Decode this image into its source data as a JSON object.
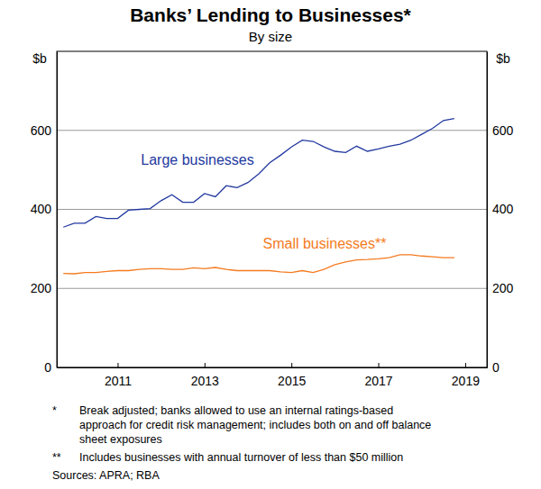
{
  "chart_data": {
    "type": "line",
    "title": "Banks’ Lending to Businesses*",
    "subtitle": "By size",
    "ylabel": "$b",
    "x": [
      2009.75,
      2010.0,
      2010.25,
      2010.5,
      2010.75,
      2011.0,
      2011.25,
      2011.5,
      2011.75,
      2012.0,
      2012.25,
      2012.5,
      2012.75,
      2013.0,
      2013.25,
      2013.5,
      2013.75,
      2014.0,
      2014.25,
      2014.5,
      2014.75,
      2015.0,
      2015.25,
      2015.5,
      2015.75,
      2016.0,
      2016.25,
      2016.5,
      2016.75,
      2017.0,
      2017.25,
      2017.5,
      2017.75,
      2018.0,
      2018.25,
      2018.5,
      2018.75
    ],
    "series": [
      {
        "name": "Large businesses",
        "color": "#2339a0",
        "values": [
          355,
          365,
          365,
          382,
          377,
          377,
          398,
          400,
          402,
          422,
          437,
          418,
          418,
          440,
          432,
          460,
          455,
          468,
          490,
          518,
          537,
          558,
          575,
          572,
          558,
          547,
          544,
          560,
          547,
          553,
          560,
          565,
          575,
          590,
          605,
          625,
          630
        ]
      },
      {
        "name": "Small businesses**",
        "color": "#f47b20",
        "values": [
          238,
          237,
          240,
          240,
          243,
          245,
          245,
          248,
          250,
          250,
          248,
          248,
          252,
          250,
          253,
          248,
          245,
          245,
          245,
          245,
          242,
          240,
          245,
          240,
          248,
          260,
          267,
          272,
          273,
          275,
          278,
          285,
          285,
          282,
          280,
          278,
          278
        ]
      }
    ],
    "xlim": [
      2009.6,
      2019.5
    ],
    "xticks": [
      2011,
      2013,
      2015,
      2017,
      2019
    ],
    "ylim": [
      0,
      800
    ],
    "yticks": [
      0,
      200,
      400,
      600
    ],
    "grid": true,
    "notes": [
      {
        "marker": "*",
        "lines": [
          "Break adjusted; banks allowed to use an internal ratings-based",
          "approach for credit risk management; includes both on and off balance",
          "sheet exposures"
        ]
      },
      {
        "marker": "**",
        "lines": [
          "Includes businesses with annual turnover of less than $50 million"
        ]
      }
    ],
    "source": "Sources: APRA; RBA"
  }
}
